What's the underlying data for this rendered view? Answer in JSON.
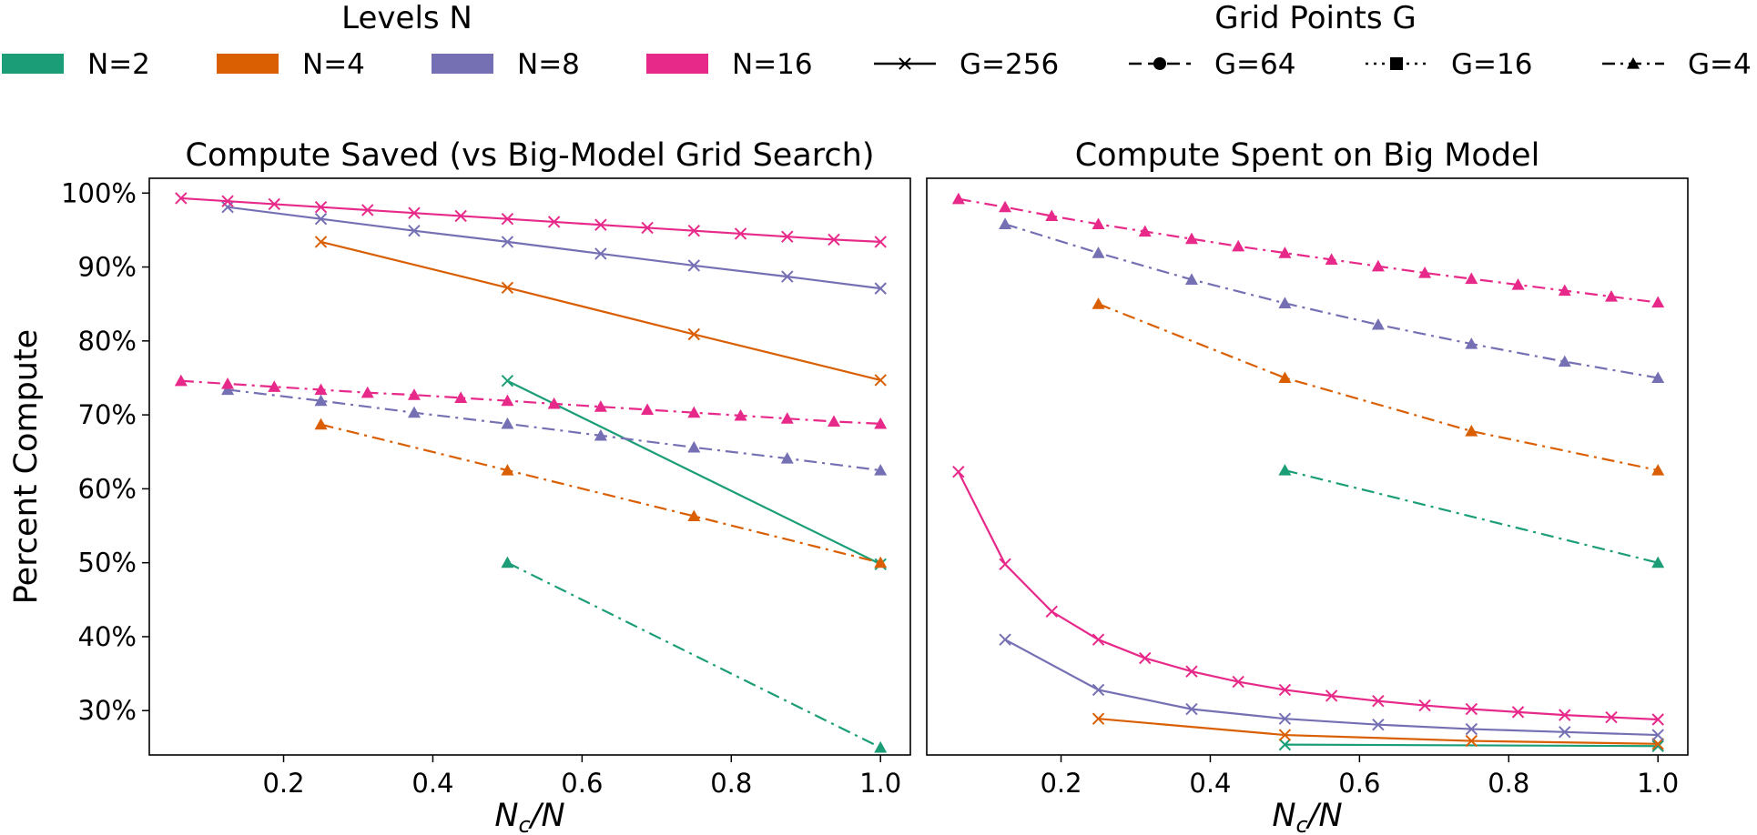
{
  "legend_levels": {
    "title": "Levels N",
    "items": [
      {
        "label": "N=2",
        "color": "#1b9e77"
      },
      {
        "label": "N=4",
        "color": "#d95f02"
      },
      {
        "label": "N=8",
        "color": "#7570b3"
      },
      {
        "label": "N=16",
        "color": "#e7298a"
      }
    ]
  },
  "legend_grid": {
    "title": "Grid Points G",
    "items": [
      {
        "label": "G=256",
        "dash": "solid",
        "marker": "x"
      },
      {
        "label": "G=64",
        "dash": "dashed",
        "marker": "circle"
      },
      {
        "label": "G=16",
        "dash": "dotted",
        "marker": "square"
      },
      {
        "label": "G=4",
        "dash": "dashdot",
        "marker": "triangle"
      }
    ]
  },
  "chart_data": [
    {
      "type": "line",
      "title": "Compute Saved (vs Big-Model Grid Search)",
      "xlabel_base": "N",
      "xlabel_sub": "c",
      "xlabel_rest": "/N",
      "ylabel": "Percent Compute",
      "xlim": [
        0.02,
        1.04
      ],
      "ylim": [
        24,
        102
      ],
      "xticks": [
        0.2,
        0.4,
        0.6,
        0.8,
        1.0
      ],
      "xtick_labels": [
        "0.2",
        "0.4",
        "0.6",
        "0.8",
        "1.0"
      ],
      "yticks": [
        30,
        40,
        50,
        60,
        70,
        80,
        90,
        100
      ],
      "ytick_labels": [
        "30%",
        "40%",
        "50%",
        "60%",
        "70%",
        "80%",
        "90%",
        "100%"
      ],
      "series": [
        {
          "level": "N=2",
          "grid": "G=256",
          "color": "#1b9e77",
          "dash": "solid",
          "marker": "x",
          "x": [
            0.5,
            1.0
          ],
          "y": [
            74.6,
            49.8
          ]
        },
        {
          "level": "N=2",
          "grid": "G=4",
          "color": "#1b9e77",
          "dash": "dashdot",
          "marker": "triangle",
          "x": [
            0.5,
            1.0
          ],
          "y": [
            50.0,
            25.0
          ]
        },
        {
          "level": "N=4",
          "grid": "G=256",
          "color": "#d95f02",
          "dash": "solid",
          "marker": "x",
          "x": [
            0.25,
            0.5,
            0.75,
            1.0
          ],
          "y": [
            93.4,
            87.2,
            80.9,
            74.7
          ]
        },
        {
          "level": "N=4",
          "grid": "G=4",
          "color": "#d95f02",
          "dash": "dashdot",
          "marker": "triangle",
          "x": [
            0.25,
            0.5,
            0.75,
            1.0
          ],
          "y": [
            68.7,
            62.5,
            56.3,
            50.0
          ]
        },
        {
          "level": "N=8",
          "grid": "G=256",
          "color": "#7570b3",
          "dash": "solid",
          "marker": "x",
          "x": [
            0.125,
            0.25,
            0.375,
            0.5,
            0.625,
            0.75,
            0.875,
            1.0
          ],
          "y": [
            98.1,
            96.5,
            94.9,
            93.4,
            91.8,
            90.2,
            88.7,
            87.1
          ]
        },
        {
          "level": "N=8",
          "grid": "G=4",
          "color": "#7570b3",
          "dash": "dashdot",
          "marker": "triangle",
          "x": [
            0.125,
            0.25,
            0.375,
            0.5,
            0.625,
            0.75,
            0.875,
            1.0
          ],
          "y": [
            73.4,
            71.9,
            70.3,
            68.8,
            67.2,
            65.6,
            64.1,
            62.5
          ]
        },
        {
          "level": "N=16",
          "grid": "G=256",
          "color": "#e7298a",
          "dash": "solid",
          "marker": "x",
          "x": [
            0.0625,
            0.125,
            0.1875,
            0.25,
            0.3125,
            0.375,
            0.4375,
            0.5,
            0.5625,
            0.625,
            0.6875,
            0.75,
            0.8125,
            0.875,
            0.9375,
            1.0
          ],
          "y": [
            99.3,
            98.9,
            98.5,
            98.1,
            97.7,
            97.3,
            96.9,
            96.5,
            96.1,
            95.7,
            95.3,
            94.9,
            94.5,
            94.1,
            93.7,
            93.4
          ]
        },
        {
          "level": "N=16",
          "grid": "G=4",
          "color": "#e7298a",
          "dash": "dashdot",
          "marker": "triangle",
          "x": [
            0.0625,
            0.125,
            0.1875,
            0.25,
            0.3125,
            0.375,
            0.4375,
            0.5,
            0.5625,
            0.625,
            0.6875,
            0.75,
            0.8125,
            0.875,
            0.9375,
            1.0
          ],
          "y": [
            74.6,
            74.2,
            73.8,
            73.4,
            73.0,
            72.7,
            72.3,
            71.9,
            71.5,
            71.1,
            70.7,
            70.3,
            69.9,
            69.5,
            69.1,
            68.8
          ]
        }
      ]
    },
    {
      "type": "line",
      "title": "Compute Spent on Big Model",
      "xlabel_base": "N",
      "xlabel_sub": "c",
      "xlabel_rest": "/N",
      "ylabel": "",
      "xlim": [
        0.02,
        1.04
      ],
      "ylim": [
        24,
        102
      ],
      "xticks": [
        0.2,
        0.4,
        0.6,
        0.8,
        1.0
      ],
      "xtick_labels": [
        "0.2",
        "0.4",
        "0.6",
        "0.8",
        "1.0"
      ],
      "yticks": [],
      "ytick_labels": [],
      "series": [
        {
          "level": "N=2",
          "grid": "G=256",
          "color": "#1b9e77",
          "dash": "solid",
          "marker": "x",
          "x": [
            0.5,
            1.0
          ],
          "y": [
            25.4,
            25.2
          ]
        },
        {
          "level": "N=2",
          "grid": "G=4",
          "color": "#1b9e77",
          "dash": "dashdot",
          "marker": "triangle",
          "x": [
            0.5,
            1.0
          ],
          "y": [
            62.5,
            50.0
          ]
        },
        {
          "level": "N=4",
          "grid": "G=256",
          "color": "#d95f02",
          "dash": "solid",
          "marker": "x",
          "x": [
            0.25,
            0.5,
            0.75,
            1.0
          ],
          "y": [
            28.9,
            26.7,
            25.9,
            25.5
          ]
        },
        {
          "level": "N=4",
          "grid": "G=4",
          "color": "#d95f02",
          "dash": "dashdot",
          "marker": "triangle",
          "x": [
            0.25,
            0.5,
            0.75,
            1.0
          ],
          "y": [
            85.0,
            75.0,
            67.8,
            62.5
          ]
        },
        {
          "level": "N=8",
          "grid": "G=256",
          "color": "#7570b3",
          "dash": "solid",
          "marker": "x",
          "x": [
            0.125,
            0.25,
            0.375,
            0.5,
            0.625,
            0.75,
            0.875,
            1.0
          ],
          "y": [
            39.6,
            32.8,
            30.2,
            28.9,
            28.1,
            27.5,
            27.1,
            26.7
          ]
        },
        {
          "level": "N=8",
          "grid": "G=4",
          "color": "#7570b3",
          "dash": "dashdot",
          "marker": "triangle",
          "x": [
            0.125,
            0.25,
            0.375,
            0.5,
            0.625,
            0.75,
            0.875,
            1.0
          ],
          "y": [
            95.8,
            91.9,
            88.3,
            85.1,
            82.2,
            79.6,
            77.2,
            75.0
          ]
        },
        {
          "level": "N=16",
          "grid": "G=256",
          "color": "#e7298a",
          "dash": "solid",
          "marker": "x",
          "x": [
            0.0625,
            0.125,
            0.1875,
            0.25,
            0.3125,
            0.375,
            0.4375,
            0.5,
            0.5625,
            0.625,
            0.6875,
            0.75,
            0.8125,
            0.875,
            0.9375,
            1.0
          ],
          "y": [
            62.3,
            49.8,
            43.4,
            39.6,
            37.1,
            35.3,
            33.9,
            32.8,
            32.0,
            31.3,
            30.7,
            30.2,
            29.8,
            29.4,
            29.1,
            28.8
          ]
        },
        {
          "level": "N=16",
          "grid": "G=4",
          "color": "#e7298a",
          "dash": "dashdot",
          "marker": "triangle",
          "x": [
            0.0625,
            0.125,
            0.1875,
            0.25,
            0.3125,
            0.375,
            0.4375,
            0.5,
            0.5625,
            0.625,
            0.6875,
            0.75,
            0.8125,
            0.875,
            0.9375,
            1.0
          ],
          "y": [
            99.2,
            98.1,
            96.9,
            95.8,
            94.8,
            93.8,
            92.8,
            91.9,
            91.0,
            90.1,
            89.2,
            88.4,
            87.6,
            86.8,
            86.0,
            85.2
          ]
        }
      ]
    }
  ]
}
